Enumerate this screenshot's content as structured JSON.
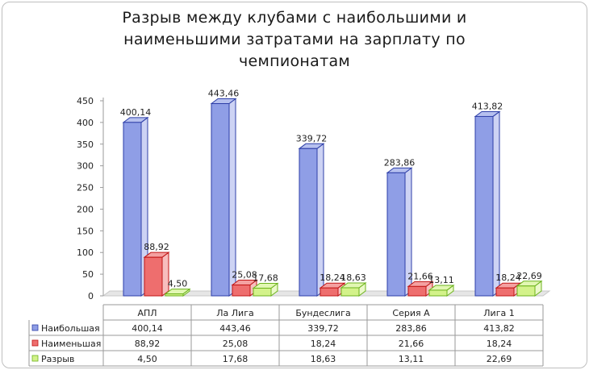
{
  "chart_data": {
    "type": "bar",
    "title_lines": [
      "Разрыв между клубами с наибольшими и",
      "наименьшими затратами на зарплату по",
      "чемпионатам"
    ],
    "categories": [
      "АПЛ",
      "Ла Лига",
      "Бундеслига",
      "Серия А",
      "Лига 1"
    ],
    "series": [
      {
        "name": "Наибольшая",
        "values": [
          400.14,
          443.46,
          339.72,
          283.86,
          413.82
        ],
        "labels": [
          "400,14",
          "443,46",
          "339,72",
          "283,86",
          "413,82"
        ],
        "color": "#8f9ee6",
        "edge": "#2e3fa8"
      },
      {
        "name": "Наименьшая",
        "values": [
          88.92,
          25.08,
          18.24,
          21.66,
          18.24
        ],
        "labels": [
          "88,92",
          "25,08",
          "18,24",
          "21,66",
          "18,24"
        ],
        "color": "#ee6e6e",
        "edge": "#c01515"
      },
      {
        "name": "Разрыв",
        "values": [
          4.5,
          17.68,
          18.63,
          13.11,
          22.69
        ],
        "labels": [
          "4,50",
          "17,68",
          "18,63",
          "13,11",
          "22,69"
        ],
        "color": "#d3f28a",
        "edge": "#6cb31c"
      }
    ],
    "ylim": [
      0,
      450
    ],
    "yticks": [
      0,
      50,
      100,
      150,
      200,
      250,
      300,
      350,
      400,
      450
    ],
    "grid": false,
    "legend": "data-table-below"
  }
}
